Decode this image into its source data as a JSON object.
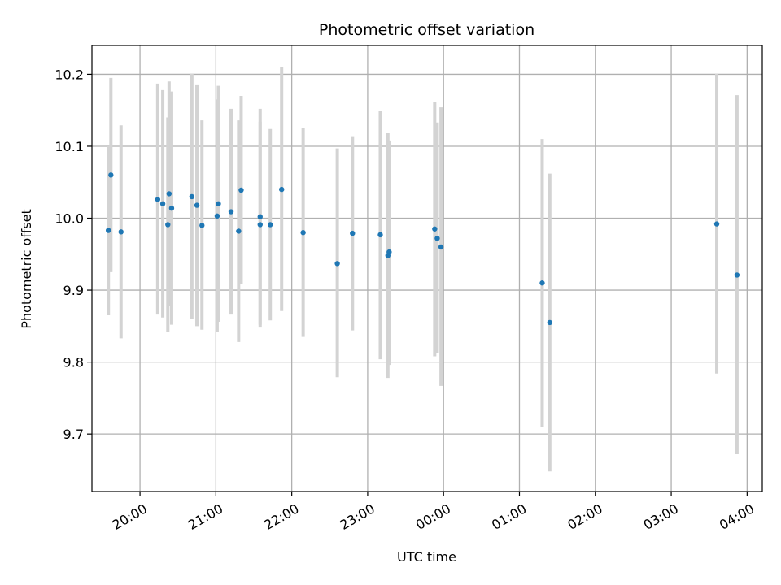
{
  "chart_data": {
    "type": "scatter",
    "title": "Photometric offset variation",
    "xlabel": "UTC time",
    "ylabel": "Photometric offset",
    "x_unit": "time-of-day (UTC), continuing past midnight",
    "xlim": [
      "19:22",
      "04:12"
    ],
    "ylim": [
      9.62,
      10.24
    ],
    "x_ticks": [
      "20:00",
      "21:00",
      "22:00",
      "23:00",
      "00:00",
      "01:00",
      "02:00",
      "03:00",
      "04:00"
    ],
    "y_ticks": [
      9.7,
      9.8,
      9.9,
      10.0,
      10.1,
      10.2
    ],
    "grid": true,
    "colors": {
      "point": "#1f77b4",
      "errorbar": "#d3d3d3",
      "grid": "#b0b0b0"
    },
    "points": [
      {
        "x": "19:35",
        "y": 9.983,
        "ylo": 9.865,
        "yhi": 10.1
      },
      {
        "x": "19:37",
        "y": 10.06,
        "ylo": 9.925,
        "yhi": 10.195
      },
      {
        "x": "19:45",
        "y": 9.981,
        "ylo": 9.833,
        "yhi": 10.129
      },
      {
        "x": "20:14",
        "y": 10.026,
        "ylo": 9.866,
        "yhi": 10.187
      },
      {
        "x": "20:18",
        "y": 10.02,
        "ylo": 9.862,
        "yhi": 10.178
      },
      {
        "x": "20:22",
        "y": 9.991,
        "ylo": 9.842,
        "yhi": 10.14
      },
      {
        "x": "20:23",
        "y": 10.034,
        "ylo": 9.878,
        "yhi": 10.19
      },
      {
        "x": "20:25",
        "y": 10.014,
        "ylo": 9.852,
        "yhi": 10.176
      },
      {
        "x": "20:41",
        "y": 10.03,
        "ylo": 9.86,
        "yhi": 10.201
      },
      {
        "x": "20:45",
        "y": 10.018,
        "ylo": 9.85,
        "yhi": 10.186
      },
      {
        "x": "20:49",
        "y": 9.99,
        "ylo": 9.845,
        "yhi": 10.136
      },
      {
        "x": "21:01",
        "y": 10.003,
        "ylo": 9.842,
        "yhi": 10.165
      },
      {
        "x": "21:02",
        "y": 10.02,
        "ylo": 9.856,
        "yhi": 10.184
      },
      {
        "x": "21:12",
        "y": 10.009,
        "ylo": 9.866,
        "yhi": 10.152
      },
      {
        "x": "21:18",
        "y": 9.982,
        "ylo": 9.828,
        "yhi": 10.136
      },
      {
        "x": "21:20",
        "y": 10.039,
        "ylo": 9.909,
        "yhi": 10.17
      },
      {
        "x": "21:35",
        "y": 9.991,
        "ylo": 9.848,
        "yhi": 10.134
      },
      {
        "x": "21:35",
        "y": 10.002,
        "ylo": 9.852,
        "yhi": 10.152
      },
      {
        "x": "21:43",
        "y": 9.991,
        "ylo": 9.858,
        "yhi": 10.124
      },
      {
        "x": "21:52",
        "y": 10.04,
        "ylo": 9.871,
        "yhi": 10.21
      },
      {
        "x": "22:09",
        "y": 9.98,
        "ylo": 9.835,
        "yhi": 10.126
      },
      {
        "x": "22:36",
        "y": 9.937,
        "ylo": 9.779,
        "yhi": 10.097
      },
      {
        "x": "22:48",
        "y": 9.979,
        "ylo": 9.844,
        "yhi": 10.114
      },
      {
        "x": "23:10",
        "y": 9.977,
        "ylo": 9.804,
        "yhi": 10.149
      },
      {
        "x": "23:16",
        "y": 9.948,
        "ylo": 9.778,
        "yhi": 10.118
      },
      {
        "x": "23:17",
        "y": 9.953,
        "ylo": 9.796,
        "yhi": 10.108
      },
      {
        "x": "23:53",
        "y": 9.985,
        "ylo": 9.808,
        "yhi": 10.161
      },
      {
        "x": "23:55",
        "y": 9.972,
        "ylo": 9.812,
        "yhi": 10.133
      },
      {
        "x": "23:58",
        "y": 9.96,
        "ylo": 9.767,
        "yhi": 10.154
      },
      {
        "x": "01:18",
        "y": 9.91,
        "ylo": 9.71,
        "yhi": 10.11
      },
      {
        "x": "01:24",
        "y": 9.855,
        "ylo": 9.648,
        "yhi": 10.062
      },
      {
        "x": "03:36",
        "y": 9.992,
        "ylo": 9.784,
        "yhi": 10.201
      },
      {
        "x": "03:52",
        "y": 9.921,
        "ylo": 9.672,
        "yhi": 10.171
      }
    ]
  }
}
